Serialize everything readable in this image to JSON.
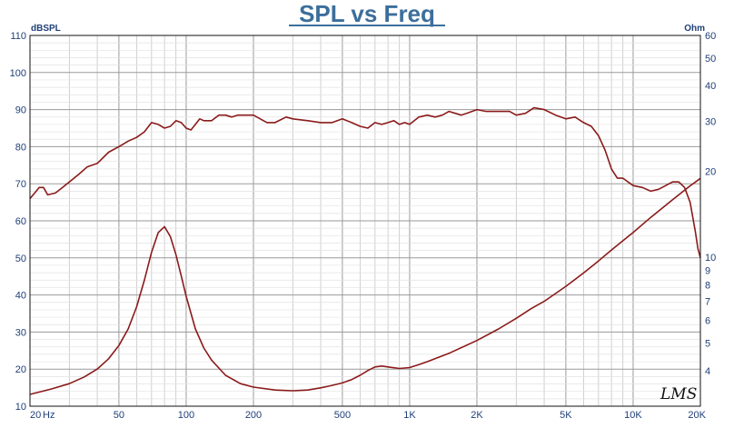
{
  "chart_data": {
    "type": "line",
    "title": "SPL vs Freq",
    "xlabel": "Hz",
    "ylabel_left": "dBSPL",
    "ylabel_right": "Ohm",
    "x_scale": "log",
    "xlim": [
      20,
      20000
    ],
    "ylim_left": [
      10,
      110
    ],
    "ylim_right": [
      3,
      60
    ],
    "y_right_scale": "log",
    "grid": true,
    "x_ticks": [
      {
        "value": 20,
        "label": "20"
      },
      {
        "value": 50,
        "label": "50"
      },
      {
        "value": 100,
        "label": "100"
      },
      {
        "value": 200,
        "label": "200"
      },
      {
        "value": 500,
        "label": "500"
      },
      {
        "value": 1000,
        "label": "1K"
      },
      {
        "value": 2000,
        "label": "2K"
      },
      {
        "value": 5000,
        "label": "5K"
      },
      {
        "value": 10000,
        "label": "10K"
      },
      {
        "value": 20000,
        "label": "20K"
      }
    ],
    "y_left_ticks": [
      10,
      20,
      30,
      40,
      50,
      60,
      70,
      80,
      90,
      100,
      110
    ],
    "y_right_ticks": [
      4,
      5,
      6,
      7,
      8,
      9,
      10,
      20,
      30,
      40,
      50,
      60
    ],
    "series": [
      {
        "axis": "left",
        "color": "#8b1a1a",
        "x": [
          20,
          21,
          22,
          23,
          24,
          26,
          28,
          30,
          33,
          36,
          40,
          45,
          50,
          55,
          60,
          65,
          70,
          75,
          80,
          85,
          90,
          95,
          100,
          105,
          110,
          115,
          120,
          130,
          140,
          150,
          160,
          170,
          180,
          200,
          230,
          250,
          280,
          300,
          350,
          400,
          450,
          500,
          550,
          600,
          650,
          700,
          750,
          800,
          850,
          900,
          950,
          1000,
          1100,
          1200,
          1300,
          1400,
          1500,
          1600,
          1700,
          1800,
          1900,
          2000,
          2200,
          2500,
          2800,
          3000,
          3300,
          3600,
          4000,
          4500,
          5000,
          5500,
          6000,
          6500,
          7000,
          7500,
          8000,
          8500,
          9000,
          10000,
          11000,
          12000,
          13000,
          14000,
          15000,
          16000,
          17000,
          18000,
          19000,
          19500,
          20000
        ],
        "y": [
          66,
          67.5,
          69,
          69,
          67,
          67.5,
          69,
          70.5,
          72.5,
          74.5,
          75.5,
          78.5,
          80,
          81.5,
          82.5,
          84,
          86.5,
          86,
          85,
          85.5,
          87,
          86.5,
          85,
          84.5,
          86,
          87.5,
          87,
          87,
          88.5,
          88.5,
          88,
          88.5,
          88.5,
          88.5,
          86.5,
          86.5,
          88,
          87.5,
          87,
          86.5,
          86.5,
          87.5,
          86.5,
          85.5,
          85,
          86.5,
          86,
          86.5,
          87,
          86,
          86.5,
          86,
          88,
          88.5,
          88,
          88.5,
          89.5,
          89,
          88.5,
          89,
          89.5,
          90,
          89.5,
          89.5,
          89.5,
          88.5,
          89,
          90.5,
          90,
          88.5,
          87.5,
          88,
          86.5,
          85.5,
          83,
          79,
          74,
          71.5,
          71.5,
          69.5,
          69,
          68,
          68.5,
          69.5,
          70.5,
          70.5,
          69,
          65,
          57,
          52.5,
          50
        ]
      },
      {
        "axis": "right",
        "color": "#8b1a1a",
        "x": [
          20,
          25,
          30,
          35,
          40,
          45,
          50,
          55,
          60,
          65,
          70,
          75,
          80,
          85,
          90,
          95,
          100,
          110,
          120,
          130,
          150,
          175,
          200,
          250,
          300,
          350,
          400,
          450,
          500,
          550,
          600,
          650,
          700,
          750,
          800,
          900,
          1000,
          1100,
          1200,
          1500,
          2000,
          2500,
          3000,
          3500,
          4000,
          5000,
          6000,
          7000,
          8000,
          10000,
          12000,
          15000,
          18000,
          20000
        ],
        "y": [
          3.3,
          3.45,
          3.6,
          3.8,
          4.05,
          4.4,
          4.9,
          5.6,
          6.7,
          8.3,
          10.4,
          12.2,
          12.8,
          11.8,
          10.2,
          8.6,
          7.3,
          5.6,
          4.8,
          4.35,
          3.85,
          3.6,
          3.5,
          3.42,
          3.4,
          3.42,
          3.48,
          3.55,
          3.62,
          3.72,
          3.85,
          4.0,
          4.12,
          4.15,
          4.12,
          4.07,
          4.1,
          4.2,
          4.3,
          4.6,
          5.1,
          5.6,
          6.1,
          6.6,
          7.0,
          7.9,
          8.8,
          9.7,
          10.6,
          12.2,
          13.8,
          15.9,
          17.8,
          18.9
        ]
      }
    ]
  },
  "watermark": "LMS"
}
